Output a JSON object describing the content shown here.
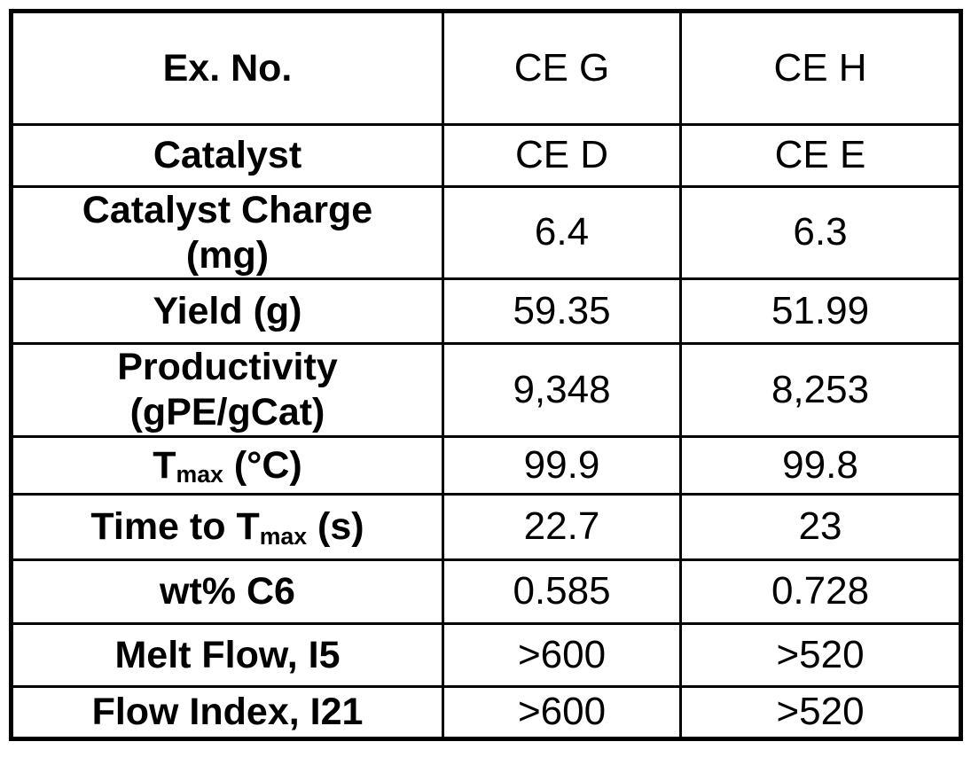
{
  "colors": {
    "border": "#000000",
    "background": "#ffffff",
    "text": "#000000"
  },
  "table": {
    "header": {
      "label_parts": [
        {
          "text": "Ex. No."
        }
      ],
      "values": [
        "CE G",
        "CE H"
      ]
    },
    "rows": [
      {
        "label_parts": [
          {
            "text": "Catalyst"
          }
        ],
        "values": [
          "CE D",
          "CE E"
        ]
      },
      {
        "label_parts": [
          {
            "text": "Catalyst Charge"
          },
          {
            "br": true
          },
          {
            "text": "(mg)"
          }
        ],
        "values": [
          "6.4",
          "6.3"
        ]
      },
      {
        "label_parts": [
          {
            "text": "Yield (g)"
          }
        ],
        "values": [
          "59.35",
          "51.99"
        ]
      },
      {
        "label_parts": [
          {
            "text": "Productivity"
          },
          {
            "br": true
          },
          {
            "text": "(gPE/gCat)"
          }
        ],
        "values": [
          "9,348",
          "8,253"
        ]
      },
      {
        "label_parts": [
          {
            "text": "T"
          },
          {
            "text": "max",
            "sub": true
          },
          {
            "text": " (°C)"
          }
        ],
        "values": [
          "99.9",
          "99.8"
        ]
      },
      {
        "label_parts": [
          {
            "text": "Time to T"
          },
          {
            "text": "max",
            "sub": true
          },
          {
            "text": " (s)"
          }
        ],
        "values": [
          "22.7",
          "23"
        ]
      },
      {
        "label_parts": [
          {
            "text": "wt% C6"
          }
        ],
        "values": [
          "0.585",
          "0.728"
        ]
      },
      {
        "label_parts": [
          {
            "text": "Melt Flow, I5"
          }
        ],
        "values": [
          ">600",
          ">520"
        ]
      },
      {
        "label_parts": [
          {
            "text": "Flow Index, I21"
          }
        ],
        "values": [
          ">600",
          ">520"
        ]
      }
    ]
  }
}
